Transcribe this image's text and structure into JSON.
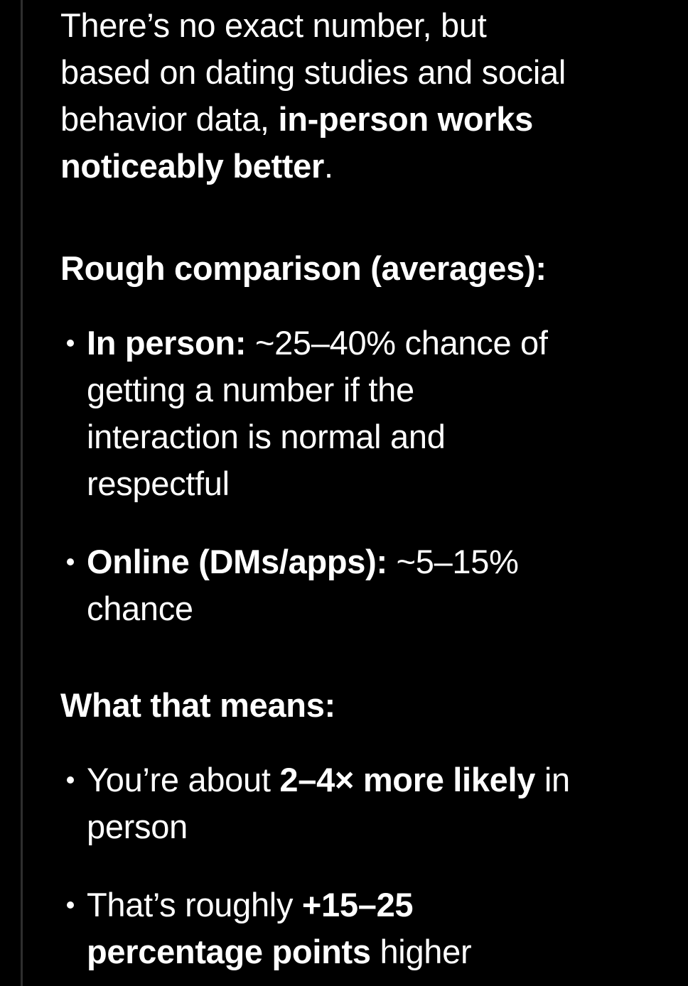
{
  "theme": {
    "bg": "#000000",
    "text": "#ffffff",
    "divider": "#2e2e2e"
  },
  "message": {
    "intro": {
      "line1": "There’s no exact number, but",
      "line2": "based on dating studies and social",
      "line3_normal": "behavior data, ",
      "line3_bold": "in-person works",
      "line4_bold": "noticeably better",
      "line4_normal": "."
    },
    "heading_comparison": "Rough comparison (averages):",
    "bullet_in_person": {
      "label": "In person:",
      "line1_rest": " ~25–40% chance of",
      "line2": "getting a number if the",
      "line3": "interaction is normal and",
      "line4": "respectful"
    },
    "bullet_online": {
      "label": "Online (DMs/apps):",
      "line1_rest": " ~5–15%",
      "line2": "chance"
    },
    "heading_meaning": "What that means:",
    "bullet_multiplier": {
      "line1_pre": "You’re about ",
      "line1_bold": "2–4× more likely",
      "line1_post": " in",
      "line2": "person"
    },
    "bullet_points": {
      "line1_pre": "That’s roughly ",
      "line1_bold": "+15–25",
      "line2_bold": "percentage points",
      "line2_post": " higher"
    }
  }
}
